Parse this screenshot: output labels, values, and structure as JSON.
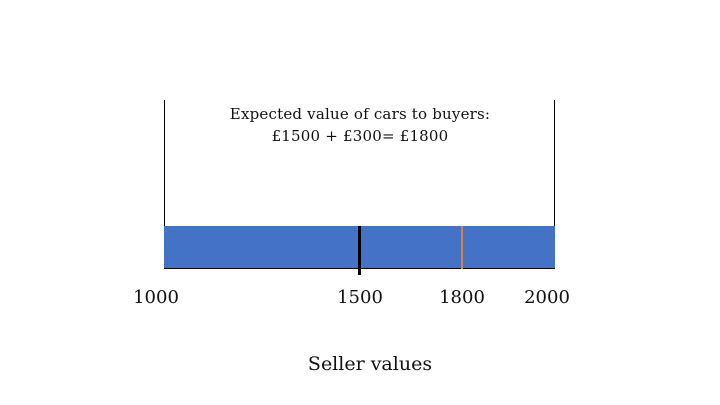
{
  "annotation": {
    "line1": "Expected value of cars to buyers:",
    "line2": "£1500 + £300= £1800"
  },
  "axis": {
    "min": 1000,
    "max": 2000,
    "tick_labels": [
      "1000",
      "1500",
      "1800",
      "2000"
    ],
    "label": "Seller values"
  },
  "markers": [
    {
      "value": 1500,
      "color": "#000000"
    },
    {
      "value": 1800,
      "color": "#d97f4b"
    }
  ],
  "colors": {
    "bar": "#4472c4"
  }
}
